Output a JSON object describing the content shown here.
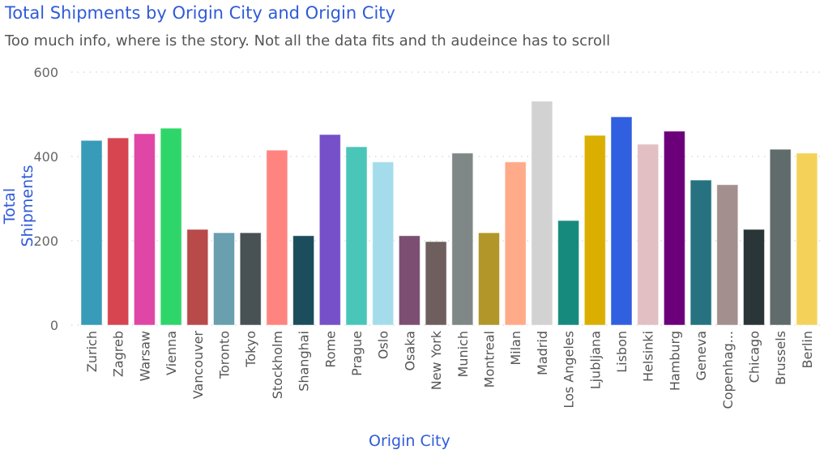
{
  "chart_data": {
    "type": "bar",
    "title": "Total Shipments by Origin City and Origin City",
    "subtitle": "Too much info, where is the story. Not all the data fits and th audeince has to scroll",
    "xlabel": "Origin City",
    "ylabel": "Total Shipments",
    "ylim": [
      0,
      600
    ],
    "yticks": [
      "0",
      "200",
      "400",
      "600"
    ],
    "grid": true,
    "categories": [
      "Zurich",
      "Zagreb",
      "Warsaw",
      "Vienna",
      "Vancouver",
      "Toronto",
      "Tokyo",
      "Stockholm",
      "Shanghai",
      "Rome",
      "Prague",
      "Oslo",
      "Osaka",
      "New York",
      "Munich",
      "Montreal",
      "Milan",
      "Madrid",
      "Los Angeles",
      "Ljubljana",
      "Lisbon",
      "Helsinki",
      "Hamburg",
      "Geneva",
      "Copenhag...",
      "Chicago",
      "Brussels",
      "Berlin"
    ],
    "values": [
      438,
      444,
      454,
      467,
      227,
      219,
      219,
      415,
      212,
      452,
      423,
      387,
      212,
      198,
      408,
      219,
      387,
      531,
      248,
      450,
      494,
      429,
      460,
      344,
      333,
      227,
      417,
      408
    ],
    "colors": [
      "#389BB8",
      "#D64550",
      "#E046A6",
      "#2ED66A",
      "#B84A4A",
      "#699FAF",
      "#485154",
      "#FF8480",
      "#1B4D5C",
      "#7550C8",
      "#4AC6B9",
      "#A5DCEC",
      "#7C4E72",
      "#6E5F5E",
      "#808787",
      "#B2962A",
      "#FFAA89",
      "#D2D2D2",
      "#178A7E",
      "#DBAF02",
      "#305FE0",
      "#E1BFC3",
      "#6C007A",
      "#267280",
      "#A38F8D",
      "#293537",
      "#606B6B",
      "#F4D25A"
    ]
  }
}
